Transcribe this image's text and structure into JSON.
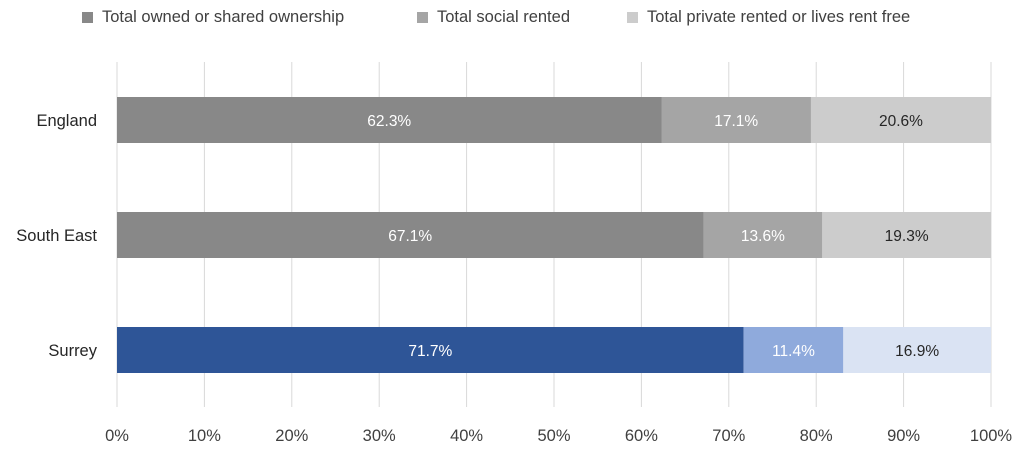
{
  "chart_data": {
    "type": "bar",
    "orientation": "horizontal",
    "stacked": true,
    "categories": [
      "England",
      "South East",
      "Surrey"
    ],
    "series": [
      {
        "name": "Total owned or shared ownership",
        "values": [
          62.3,
          67.1,
          71.7
        ],
        "labels": [
          "62.3%",
          "67.1%",
          "71.7%"
        ]
      },
      {
        "name": "Total social rented",
        "values": [
          17.1,
          13.6,
          11.4
        ],
        "labels": [
          "17.1%",
          "13.6%",
          "11.4%"
        ]
      },
      {
        "name": "Total private rented or lives rent free",
        "values": [
          20.6,
          19.3,
          16.9
        ],
        "labels": [
          "20.6%",
          "19.3%",
          "16.9%"
        ]
      }
    ],
    "xlim": [
      0,
      100
    ],
    "xticks": [
      "0%",
      "10%",
      "20%",
      "30%",
      "40%",
      "50%",
      "60%",
      "70%",
      "80%",
      "90%",
      "100%"
    ],
    "grid": "vertical",
    "legend_position": "top",
    "colors": {
      "default": [
        "#888888",
        "#a5a5a5",
        "#cccccc"
      ],
      "highlight": [
        "#2e5597",
        "#8faadc",
        "#dae3f3"
      ],
      "highlight_category": "Surrey",
      "label_text_dark_segments": "#ffffff",
      "label_text_light_segments": "#262626"
    }
  }
}
